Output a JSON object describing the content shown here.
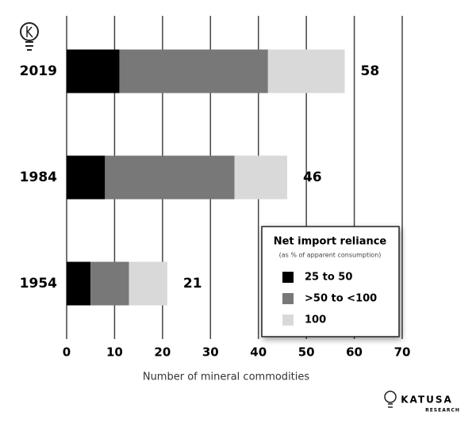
{
  "chart_data": {
    "type": "bar",
    "orientation": "horizontal",
    "stacked": true,
    "categories": [
      "2019",
      "1984",
      "1954"
    ],
    "series": [
      {
        "name": "25 to 50",
        "color": "#000000",
        "values": [
          11,
          8,
          5
        ]
      },
      {
        "name": ">50 to <100",
        "color": "#787878",
        "values": [
          31,
          27,
          8
        ]
      },
      {
        "name": "100",
        "color": "#d9d9d9",
        "values": [
          16,
          11,
          8
        ]
      }
    ],
    "value_labels": [
      "58",
      "46",
      "21"
    ],
    "xlim": [
      0,
      70
    ],
    "xticks": [
      0,
      10,
      20,
      30,
      40,
      50,
      60,
      70
    ],
    "x_label": "Number of mineral commodities",
    "grid": true,
    "legend": {
      "title": "Net import reliance",
      "subtitle": "(as % of apparent consumption)",
      "position": "lower right"
    }
  },
  "brand": {
    "name": "KATUSA",
    "sub": "RESEARCH"
  }
}
